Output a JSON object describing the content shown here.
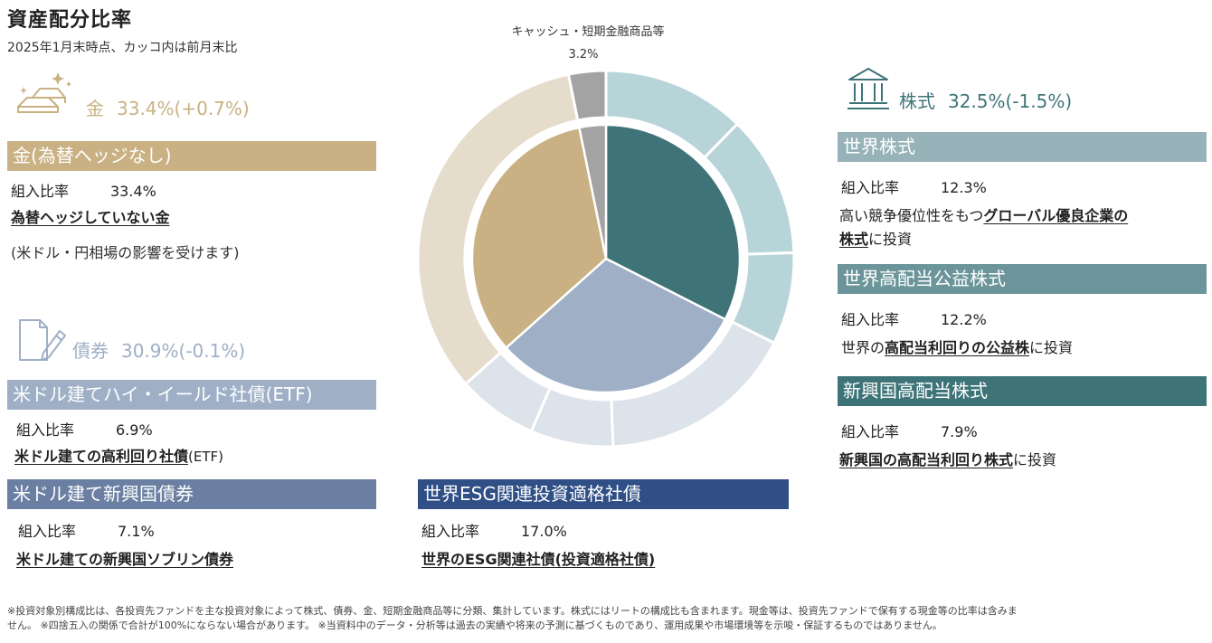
{
  "header": {
    "title": "資産配分比率",
    "subtitle": "2025年1月末時点、カッコ内は前月末比"
  },
  "colors": {
    "gold": "#c9b183",
    "gold_light": "#e6dccb",
    "bond": "#9eafc6",
    "bond_light": "#dde3ea",
    "stock": "#3e7478",
    "stock_light": "#b7d4d9",
    "cash": "#a3a3a3",
    "bar_gold": "#c9b183",
    "bar_hy": "#9eafc6",
    "bar_em": "#6a7fa2",
    "bar_esg": "#2f4f86",
    "bar_world": "#97b3b9",
    "bar_util": "#6b959a",
    "bar_emeq": "#3e7478",
    "icon_gold": "#c9b183",
    "icon_bond": "#9eafc6",
    "icon_stock": "#3e7478"
  },
  "categories": {
    "gold": {
      "name": "金",
      "value": "33.4%(+0.7%)",
      "icon": "gold-bars-icon"
    },
    "bond": {
      "name": "債券",
      "value": "30.9%(-0.1%)",
      "icon": "document-pen-icon"
    },
    "stock": {
      "name": "株式",
      "value": "32.5%(-1.5%)",
      "icon": "bank-building-icon"
    }
  },
  "funds": {
    "gold": {
      "title": "金(為替ヘッジなし)",
      "label": "組入比率",
      "ratio": "33.4%",
      "desc_underlined": "為替ヘッジしていない金",
      "note": "(米ドル・円相場の影響を受けます)"
    },
    "hy": {
      "title": "米ドル建てハイ・イールド社債(ETF)",
      "label": "組入比率",
      "ratio": "6.9%",
      "desc_underlined": "米ドル建ての高利回り社債",
      "desc_suffix": "(ETF)"
    },
    "em": {
      "title": "米ドル建て新興国債券",
      "label": "組入比率",
      "ratio": "7.1%",
      "desc_underlined": "米ドル建ての新興国ソブリン債券"
    },
    "esg": {
      "title": "世界ESG関連投資適格社債",
      "label": "組入比率",
      "ratio": "17.0%",
      "desc_underlined": "世界のESG関連社債(投資適格社債)"
    },
    "world": {
      "title": "世界株式",
      "label": "組入比率",
      "ratio": "12.3%",
      "desc_prefix": "高い競争優位性をもつ",
      "desc_underlined_1": "グローバル優良企業の",
      "desc_underlined_2": "株式",
      "desc_suffix": "に投資"
    },
    "util": {
      "title": "世界高配当公益株式",
      "label": "組入比率",
      "ratio": "12.2%",
      "desc_prefix": "世界の",
      "desc_underlined": "高配当利回りの公益株",
      "desc_suffix": "に投資"
    },
    "emeq": {
      "title": "新興国高配当株式",
      "label": "組入比率",
      "ratio": "7.9%",
      "desc_underlined": "新興国の高配当利回り株式",
      "desc_suffix": "に投資"
    }
  },
  "chart_data": {
    "type": "pie",
    "inner_ring": {
      "slices": [
        {
          "name": "株式",
          "value": 32.5,
          "color": "#3e7478"
        },
        {
          "name": "債券",
          "value": 30.9,
          "color": "#9eafc6"
        },
        {
          "name": "金",
          "value": 33.4,
          "color": "#c9b183"
        },
        {
          "name": "キャッシュ・短期金融商品等",
          "value": 3.2,
          "color": "#a3a3a3"
        }
      ]
    },
    "outer_ring": {
      "slices": [
        {
          "name": "世界株式",
          "value": 12.3,
          "color": "#b7d4d9"
        },
        {
          "name": "世界高配当公益株式",
          "value": 12.2,
          "color": "#b7d4d9"
        },
        {
          "name": "新興国高配当株式",
          "value": 7.9,
          "color": "#b7d4d9"
        },
        {
          "name": "世界ESG関連投資適格社債",
          "value": 17.0,
          "color": "#dde3ea"
        },
        {
          "name": "米ドル建て新興国債券",
          "value": 7.1,
          "color": "#dde3ea"
        },
        {
          "name": "米ドル建てハイ・イールド社債(ETF)",
          "value": 6.9,
          "color": "#dde3ea"
        },
        {
          "name": "金(為替ヘッジなし)",
          "value": 33.4,
          "color": "#e6dccb"
        },
        {
          "name": "キャッシュ・短期金融商品等",
          "value": 3.2,
          "color": "#a3a3a3"
        }
      ]
    },
    "annotation": {
      "label": "キャッシュ・短期金融商品等",
      "value": "3.2%"
    }
  },
  "footer": {
    "line1": "※投資対象別構成比は、各投資先ファンドを主な投資対象によって株式、債券、金、短期金融商品等に分類、集計しています。株式にはリートの構成比も含まれます。現金等は、投資先ファンドで保有する現金等の比率は含みま",
    "line2": "せん。 ※四捨五入の関係で合計が100%にならない場合があります。 ※当資料中のデータ・分析等は過去の実績や将来の予測に基づくものであり、運用成果や市場環境等を示唆・保証するものではありません。"
  }
}
